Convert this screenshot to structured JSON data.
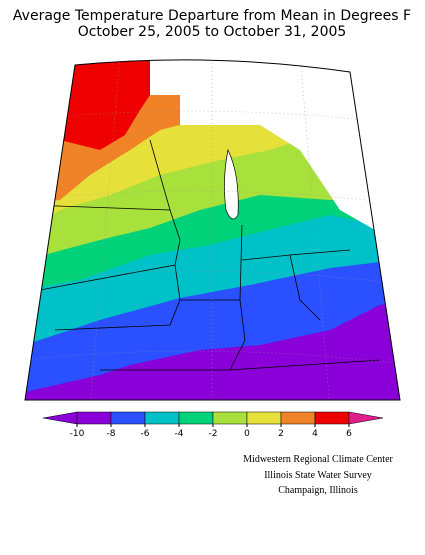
{
  "title": [
    "Average Temperature Departure from Mean in Degrees F",
    "October 25, 2005 to October 31, 2005"
  ],
  "legend": {
    "ticks": [
      -10,
      -8,
      -6,
      -4,
      -2,
      0,
      2,
      4,
      6
    ],
    "colors": [
      "#8a00d8",
      "#8a00d8",
      "#2a50ff",
      "#00c0c8",
      "#00d27a",
      "#a8e03c",
      "#e6e03a",
      "#f08228",
      "#ee0000",
      "#e01e8c"
    ]
  },
  "credits": [
    "Midwestern Regional Climate Center",
    "Illinois State Water Survey",
    "Champaign, Illinois"
  ]
}
